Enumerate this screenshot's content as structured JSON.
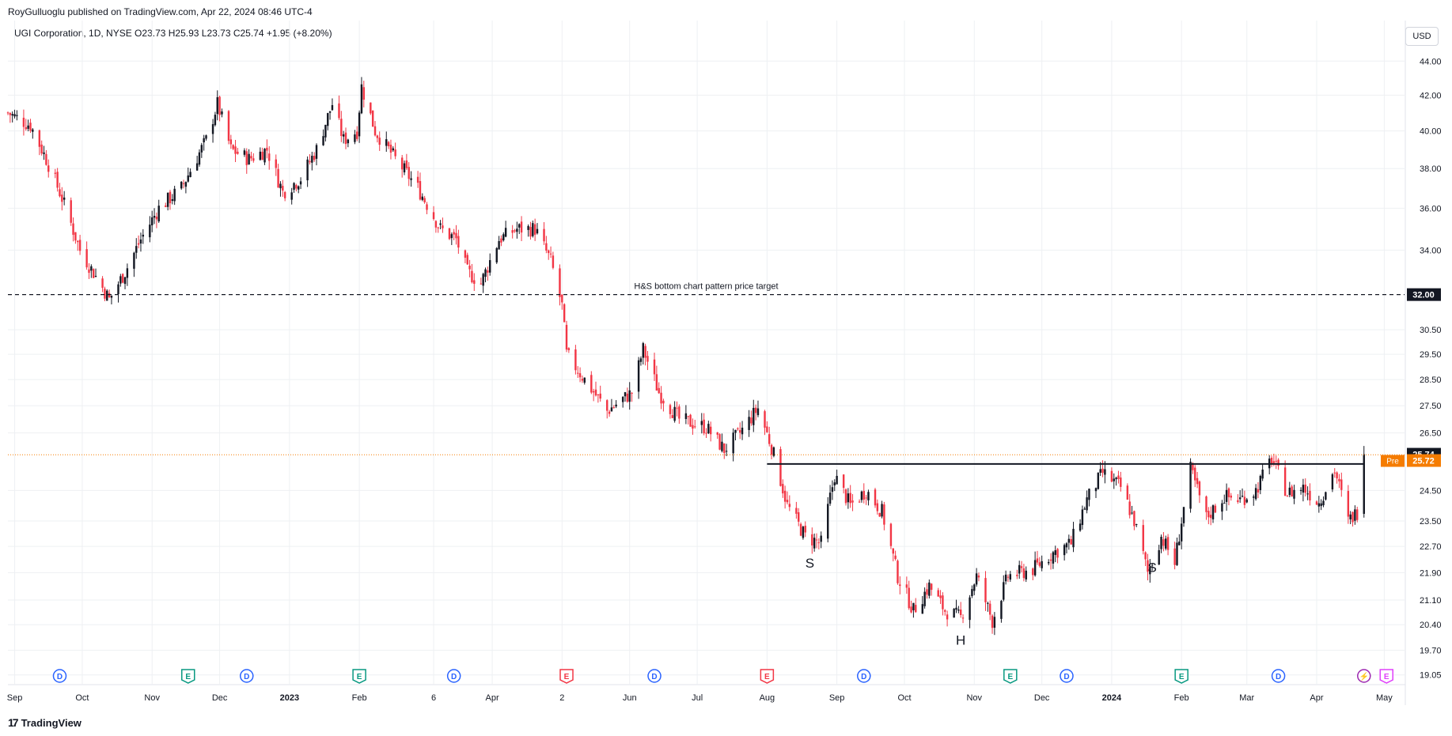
{
  "header": {
    "publisher_line": "RoyGulluoglu published on TradingView.com, Apr 22, 2024 08:46 UTC-4",
    "legend": "UGI Corporation, 1D, NYSE  O23.73  H25.93  L23.73  C25.74  +1.95 (+8.20%)"
  },
  "currency_button": "USD",
  "footer": {
    "logo_text": "TradingView",
    "logo_mark": "17"
  },
  "colors": {
    "up": "#131722",
    "down": "#f23645",
    "grid": "#eef0f3",
    "current": "#f57c00",
    "ref": "#131722"
  },
  "chart_data": {
    "type": "candlestick",
    "x_tick_labels": [
      "Sep",
      "Oct",
      "Nov",
      "Dec",
      "2023",
      "Feb",
      "6",
      "Apr",
      "2",
      "Jun",
      "Jul",
      "Aug",
      "Sep",
      "Oct",
      "Nov",
      "Dec",
      "2024",
      "Feb",
      "Mar",
      "Apr",
      "May"
    ],
    "y_tick_labels": [
      "44.00",
      "42.00",
      "40.00",
      "38.00",
      "36.00",
      "34.00",
      "30.50",
      "29.50",
      "28.50",
      "27.50",
      "26.50",
      "24.50",
      "23.50",
      "22.70",
      "21.90",
      "21.10",
      "20.40",
      "19.70",
      "19.05"
    ],
    "y_ticks": [
      44,
      42,
      40,
      38,
      36,
      34,
      30.5,
      29.5,
      28.5,
      27.5,
      26.5,
      24.5,
      23.5,
      22.7,
      21.9,
      21.1,
      20.4,
      19.7,
      19.05
    ],
    "y_scale": "log",
    "ylim": [
      18.8,
      46.5
    ],
    "x_range": [
      "Aug 29, 2022",
      "May 10, 2024"
    ],
    "price_path": [
      [
        "2022-08-29",
        41.0
      ],
      [
        "2022-09-08",
        40.3
      ],
      [
        "2022-09-15",
        38.5
      ],
      [
        "2022-09-22",
        36.5
      ],
      [
        "2022-09-30",
        34.0
      ],
      [
        "2022-10-07",
        32.8
      ],
      [
        "2022-10-13",
        31.8
      ],
      [
        "2022-10-20",
        33.0
      ],
      [
        "2022-10-27",
        34.5
      ],
      [
        "2022-11-04",
        36.0
      ],
      [
        "2022-11-14",
        37.0
      ],
      [
        "2022-11-25",
        39.5
      ],
      [
        "2022-11-30",
        41.5
      ],
      [
        "2022-12-06",
        39.0
      ],
      [
        "2022-12-14",
        38.5
      ],
      [
        "2022-12-22",
        39.0
      ],
      [
        "2022-12-29",
        36.8
      ],
      [
        "2023-01-06",
        37.5
      ],
      [
        "2023-01-13",
        39.0
      ],
      [
        "2023-01-20",
        41.5
      ],
      [
        "2023-01-25",
        39.5
      ],
      [
        "2023-01-31",
        40.0
      ],
      [
        "2023-02-02",
        42.5
      ],
      [
        "2023-02-08",
        40.0
      ],
      [
        "2023-02-17",
        38.5
      ],
      [
        "2023-02-27",
        37.0
      ],
      [
        "2023-03-09",
        35.0
      ],
      [
        "2023-03-16",
        34.5
      ],
      [
        "2023-03-21",
        33.0
      ],
      [
        "2023-03-27",
        32.5
      ],
      [
        "2023-04-04",
        34.5
      ],
      [
        "2023-04-12",
        35.0
      ],
      [
        "2023-04-20",
        35.0
      ],
      [
        "2023-04-27",
        33.5
      ],
      [
        "2023-05-02",
        31.5
      ],
      [
        "2023-05-04",
        29.5
      ],
      [
        "2023-05-12",
        28.5
      ],
      [
        "2023-05-22",
        27.3
      ],
      [
        "2023-06-02",
        28.0
      ],
      [
        "2023-06-07",
        29.7
      ],
      [
        "2023-06-14",
        28.0
      ],
      [
        "2023-06-23",
        27.0
      ],
      [
        "2023-07-05",
        26.7
      ],
      [
        "2023-07-13",
        25.9
      ],
      [
        "2023-07-20",
        26.5
      ],
      [
        "2023-07-28",
        27.4
      ],
      [
        "2023-08-03",
        26.0
      ],
      [
        "2023-08-10",
        24.0
      ],
      [
        "2023-08-18",
        23.0
      ],
      [
        "2023-08-25",
        22.8
      ],
      [
        "2023-08-31",
        25.0
      ],
      [
        "2023-09-07",
        24.0
      ],
      [
        "2023-09-14",
        24.5
      ],
      [
        "2023-09-21",
        23.8
      ],
      [
        "2023-09-28",
        21.8
      ],
      [
        "2023-10-05",
        20.8
      ],
      [
        "2023-10-12",
        21.5
      ],
      [
        "2023-10-19",
        20.8
      ],
      [
        "2023-10-26",
        20.6
      ],
      [
        "2023-11-02",
        21.8
      ],
      [
        "2023-11-09",
        20.5
      ],
      [
        "2023-11-16",
        21.8
      ],
      [
        "2023-11-27",
        22.0
      ],
      [
        "2023-12-06",
        22.5
      ],
      [
        "2023-12-14",
        22.8
      ],
      [
        "2023-12-21",
        24.2
      ],
      [
        "2023-12-28",
        25.1
      ],
      [
        "2024-01-05",
        24.6
      ],
      [
        "2024-01-11",
        23.5
      ],
      [
        "2024-01-17",
        21.9
      ],
      [
        "2024-01-23",
        23.0
      ],
      [
        "2024-01-29",
        22.2
      ],
      [
        "2024-02-05",
        25.2
      ],
      [
        "2024-02-12",
        23.6
      ],
      [
        "2024-02-20",
        24.3
      ],
      [
        "2024-02-27",
        24.2
      ],
      [
        "2024-03-05",
        24.5
      ],
      [
        "2024-03-12",
        25.6
      ],
      [
        "2024-03-19",
        24.4
      ],
      [
        "2024-03-26",
        24.6
      ],
      [
        "2024-04-02",
        24.1
      ],
      [
        "2024-04-09",
        25.2
      ],
      [
        "2024-04-15",
        23.5
      ],
      [
        "2024-04-19",
        23.79
      ],
      [
        "2024-04-22",
        25.74
      ]
    ],
    "lines": [
      {
        "label": "H&S bottom chart pattern price target",
        "price": 32.0,
        "style": "dashed",
        "from": "2022-08-29",
        "to": "2024-05-10"
      },
      {
        "label": "",
        "price": 25.4,
        "style": "solid",
        "from": "2023-08-01",
        "to": "2024-04-22"
      }
    ],
    "annotations": [
      {
        "text": "S",
        "date": "2023-08-20",
        "price": 22.05
      },
      {
        "text": "H",
        "date": "2023-10-26",
        "price": 19.85
      },
      {
        "text": "S",
        "date": "2024-01-19",
        "price": 21.92
      }
    ],
    "price_labels": [
      {
        "text": "32.00",
        "price": 32.0,
        "kind": "ref"
      },
      {
        "text": "25.74",
        "price": 25.74,
        "kind": "ref"
      },
      {
        "text": "25.72",
        "tag": "Pre",
        "price": 25.52,
        "kind": "current"
      }
    ],
    "current_price_line": 25.72,
    "event_markers": [
      {
        "letter": "D",
        "date": "2022-09-21",
        "color": "#2962ff"
      },
      {
        "letter": "E",
        "date": "2022-11-17",
        "color": "#089981"
      },
      {
        "letter": "D",
        "date": "2022-12-13",
        "color": "#2962ff"
      },
      {
        "letter": "E",
        "date": "2023-02-01",
        "color": "#089981"
      },
      {
        "letter": "D",
        "date": "2023-03-15",
        "color": "#2962ff"
      },
      {
        "letter": "E",
        "date": "2023-05-04",
        "color": "#f23645"
      },
      {
        "letter": "D",
        "date": "2023-06-12",
        "color": "#2962ff"
      },
      {
        "letter": "E",
        "date": "2023-08-01",
        "color": "#f23645"
      },
      {
        "letter": "D",
        "date": "2023-09-13",
        "color": "#2962ff"
      },
      {
        "letter": "E",
        "date": "2023-11-17",
        "color": "#089981"
      },
      {
        "letter": "D",
        "date": "2023-12-12",
        "color": "#2962ff"
      },
      {
        "letter": "E",
        "date": "2024-02-01",
        "color": "#089981"
      },
      {
        "letter": "D",
        "date": "2024-03-15",
        "color": "#2962ff"
      },
      {
        "letter": "⚡",
        "date": "2024-04-22",
        "color": "#9c27b0"
      },
      {
        "letter": "E",
        "date": "2024-05-02",
        "color": "#e040fb"
      }
    ]
  }
}
